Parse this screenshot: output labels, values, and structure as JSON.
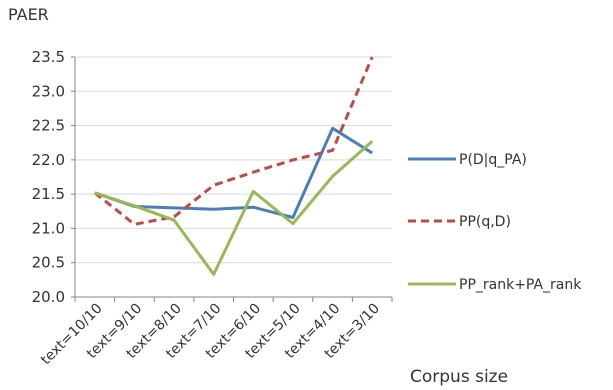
{
  "chart_data": {
    "type": "line",
    "ylabel": "PAER",
    "xlabel": "Corpus size",
    "categories": [
      "text=10/10",
      "text=9/10",
      "text=8/10",
      "text=7/10",
      "text=6/10",
      "text=5/10",
      "text=4/10",
      "text=3/10"
    ],
    "ylim": [
      20.0,
      23.5
    ],
    "yticks": [
      "20.0",
      "20.5",
      "21.0",
      "21.5",
      "22.0",
      "22.5",
      "23.0",
      "23.5"
    ],
    "grid": true,
    "legend_position": "right",
    "series": [
      {
        "name": "P(D|q_PA)",
        "values": [
          21.52,
          21.32,
          21.3,
          21.28,
          21.31,
          21.16,
          22.46,
          22.1
        ],
        "color": "#4a7ebb",
        "dash": "solid"
      },
      {
        "name": "PP(q,D)",
        "values": [
          21.52,
          21.06,
          21.17,
          21.63,
          21.82,
          22.0,
          22.14,
          23.5
        ],
        "color": "#be4b48",
        "dash": "dashed"
      },
      {
        "name": "PP_rank+PA_rank",
        "values": [
          21.52,
          21.33,
          21.12,
          20.33,
          21.54,
          21.07,
          21.76,
          22.27
        ],
        "color": "#98b954",
        "dash": "solid"
      }
    ]
  }
}
